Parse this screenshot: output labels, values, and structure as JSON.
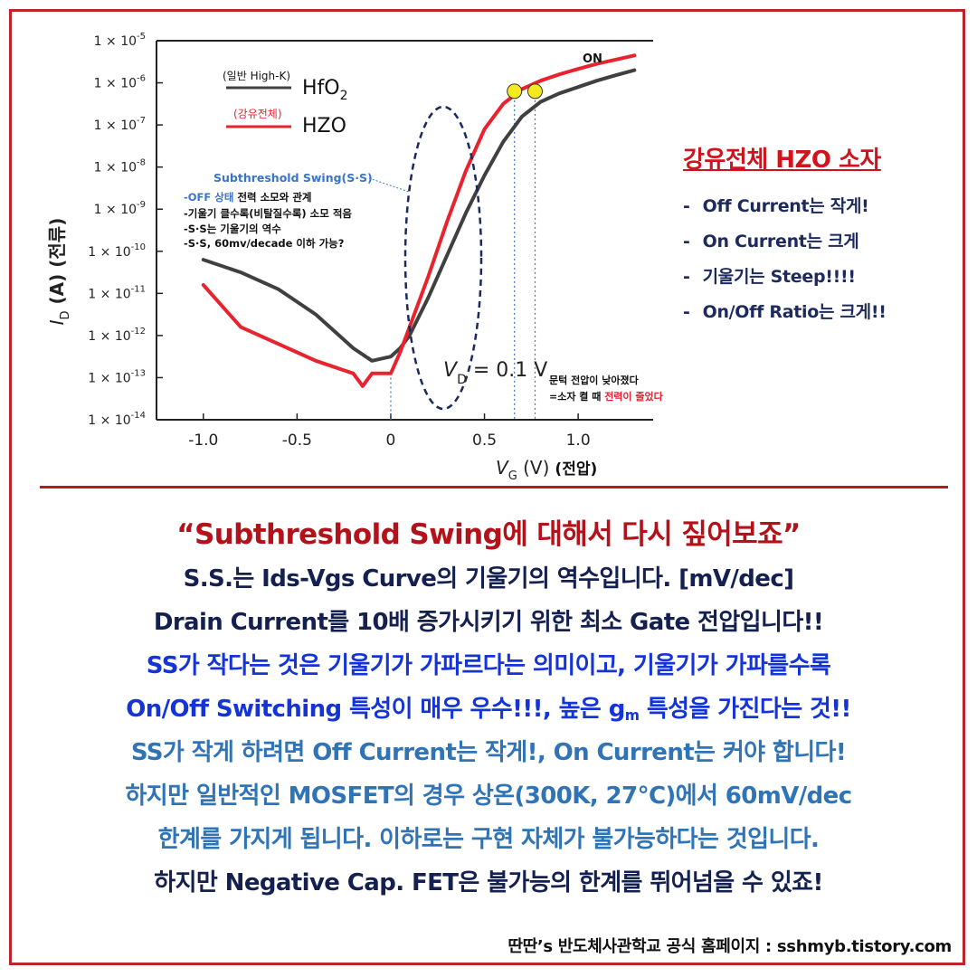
{
  "chart_data": {
    "type": "line",
    "xlabel": "V_G (V) (전압)",
    "xlabel_main": "V",
    "xlabel_sub": "G",
    "xlabel_rest": " (V)",
    "xlabel_korean": "(전압)",
    "ylabel": "I_D (A) (전류)",
    "ylabel_main": "I",
    "ylabel_sub": "D",
    "ylabel_rest": " (A) (전류)",
    "xlim": [
      -1.25,
      1.4
    ],
    "ylim_log10": [
      -14,
      -5
    ],
    "x_ticks": [
      -1.0,
      -0.5,
      0,
      0.5,
      1.0
    ],
    "x_tick_labels": [
      "-1.0",
      "-0.5",
      "0",
      "0.5",
      "1.0"
    ],
    "y_tick_exponents": [
      -5,
      -6,
      -7,
      -8,
      -9,
      -10,
      -11,
      -12,
      -13,
      -14
    ],
    "y_tick_prefix": "1 × 10",
    "grid": false,
    "series": [
      {
        "name": "HfO2",
        "legend_note": "(일반 High-K)",
        "legend_label": "HfO",
        "legend_sub": "2",
        "color": "#404040",
        "x": [
          -1.0,
          -0.8,
          -0.6,
          -0.5,
          -0.4,
          -0.3,
          -0.2,
          -0.1,
          0.0,
          0.05,
          0.1,
          0.2,
          0.3,
          0.4,
          0.5,
          0.6,
          0.7,
          0.8,
          0.9,
          1.0,
          1.1,
          1.2,
          1.3
        ],
        "y_log10": [
          -10.2,
          -10.5,
          -10.9,
          -11.2,
          -11.5,
          -11.9,
          -12.3,
          -12.6,
          -12.5,
          -12.3,
          -12.0,
          -11.1,
          -10.1,
          -9.1,
          -8.2,
          -7.4,
          -6.8,
          -6.45,
          -6.25,
          -6.1,
          -5.95,
          -5.82,
          -5.7
        ]
      },
      {
        "name": "HZO",
        "legend_note": "(강유전체)",
        "legend_label": "HZO",
        "legend_sub": "",
        "color": "#e8232d",
        "x": [
          -1.0,
          -0.9,
          -0.8,
          -0.6,
          -0.5,
          -0.4,
          -0.3,
          -0.2,
          -0.15,
          -0.1,
          0.0,
          0.05,
          0.1,
          0.2,
          0.3,
          0.4,
          0.5,
          0.6,
          0.7,
          0.8,
          0.9,
          1.0,
          1.1,
          1.2,
          1.3
        ],
        "y_log10": [
          -10.8,
          -11.3,
          -11.8,
          -12.2,
          -12.4,
          -12.6,
          -12.75,
          -12.9,
          -13.2,
          -12.9,
          -12.9,
          -12.4,
          -11.8,
          -10.6,
          -9.3,
          -8.1,
          -7.1,
          -6.5,
          -6.15,
          -5.95,
          -5.8,
          -5.67,
          -5.55,
          -5.45,
          -5.35
        ]
      }
    ],
    "markers": [
      {
        "x": 0.66,
        "y_log10": -6.2
      },
      {
        "x": 0.77,
        "y_log10": -6.2
      }
    ],
    "on_label": "ON",
    "vd_main": "V",
    "vd_sub": "D",
    "vd_rest": " = 0.1 V",
    "ss_title": "Subthreshold Swing(S·S)",
    "ss_notes": [
      {
        "highlight": "-OFF 상태",
        "rest": " 전력 소모와 관계"
      },
      {
        "highlight": "",
        "rest": "-기울기 클수록(비탈질수록) 소모 적음"
      },
      {
        "highlight": "",
        "rest": "-S·S는 기울기의 역수"
      },
      {
        "highlight": "",
        "rest": "-S·S, 60mv/decade 이하 가능?"
      }
    ],
    "threshold_note_1": "문턱 전압이 낮아졌다",
    "threshold_note_2_prefix": "=소자 켤 때 ",
    "threshold_note_2_highlight": "전력이 줄었다"
  },
  "side_panel": {
    "title": "강유전체 HZO 소자",
    "items": [
      "Off Current는 작게!",
      "On Current는 크게",
      "기울기는 Steep!!!!",
      "On/Off Ratio는 크게!!"
    ]
  },
  "body": {
    "headline": "“Subthreshold Swing에 대해서 다시 짚어보죠”",
    "navy_1": "S.S.는 Ids-Vgs Curve의 기울기의 역수입니다. [mV/dec]",
    "navy_2": "Drain Current를 10배 증가시키기 위한 최소 Gate 전압입니다!!",
    "blue_1": "SS가 작다는 것은 기울기가 가파르다는 의미이고, 기울기가 가파를수록",
    "blue_2a": "On/Off Switching 특성이 매우 우수!!!, 높은 g",
    "blue_2sub": "m",
    "blue_2b": " 특성을 가진다는 것!!",
    "steel_1": "SS가 작게 하려면 Off Current는 작게!, On Current는 커야 합니다!",
    "steel_2": "하지만 일반적인 MOSFET의 경우 상온(300K, 27℃)에서 60mV/dec",
    "steel_3": "한계를 가지게 됩니다. 이하로는 구현 자체가 불가능하다는 것입니다.",
    "navy_3": "하지만 Negative Cap. FET은 불가능의 한계를 뛰어넘을 수 있죠!"
  },
  "footer": "딴딴’s 반도체사관학교 공식 홈페이지 : sshmyb.tistory.com"
}
